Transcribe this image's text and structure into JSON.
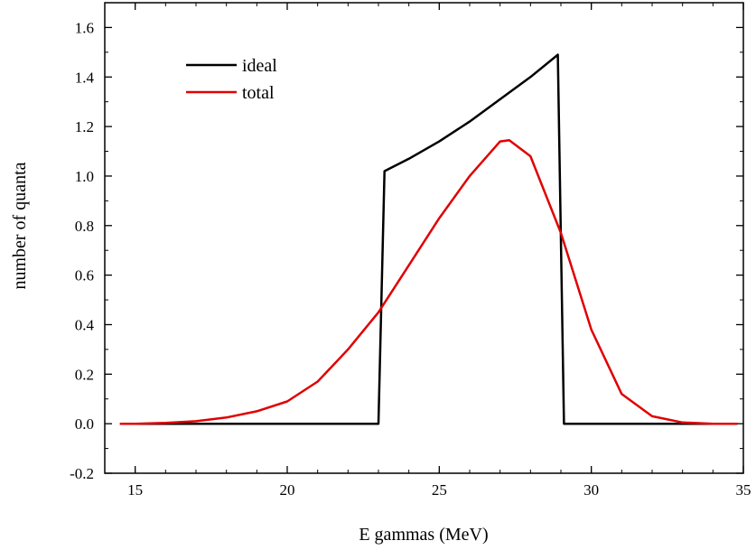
{
  "chart_data": {
    "type": "line",
    "xlabel": "E gammas (MeV)",
    "ylabel": "number of quanta",
    "xlim": [
      14,
      35
    ],
    "ylim": [
      -0.2,
      1.7
    ],
    "x_ticks": [
      15,
      20,
      25,
      30,
      35
    ],
    "y_ticks": [
      -0.2,
      0.0,
      0.2,
      0.4,
      0.6,
      0.8,
      1.0,
      1.2,
      1.4,
      1.6
    ],
    "x_tick_labels": [
      "15",
      "20",
      "25",
      "30",
      "35"
    ],
    "y_tick_labels": [
      "-0.2",
      "0.0",
      "0.2",
      "0.4",
      "0.6",
      "0.8",
      "1.0",
      "1.2",
      "1.4",
      "1.6"
    ],
    "grid": false,
    "legend_position": "top-left",
    "series": [
      {
        "name": "ideal",
        "color": "#000000",
        "points": [
          [
            14.5,
            0
          ],
          [
            23.0,
            0
          ],
          [
            23.2,
            1.02
          ],
          [
            24,
            1.07
          ],
          [
            25,
            1.14
          ],
          [
            26,
            1.22
          ],
          [
            27,
            1.31
          ],
          [
            28,
            1.4
          ],
          [
            28.9,
            1.49
          ],
          [
            29.1,
            0
          ],
          [
            34.8,
            0
          ]
        ]
      },
      {
        "name": "total",
        "color": "#e00000",
        "points": [
          [
            14.5,
            0
          ],
          [
            15,
            0
          ],
          [
            16,
            0.003
          ],
          [
            17,
            0.01
          ],
          [
            18,
            0.025
          ],
          [
            19,
            0.05
          ],
          [
            20,
            0.09
          ],
          [
            21,
            0.17
          ],
          [
            22,
            0.3
          ],
          [
            23,
            0.45
          ],
          [
            24,
            0.64
          ],
          [
            25,
            0.83
          ],
          [
            26,
            1.0
          ],
          [
            27,
            1.14
          ],
          [
            27.3,
            1.145
          ],
          [
            28,
            1.08
          ],
          [
            29,
            0.77
          ],
          [
            30,
            0.38
          ],
          [
            31,
            0.12
          ],
          [
            32,
            0.03
          ],
          [
            33,
            0.005
          ],
          [
            34,
            0
          ],
          [
            34.8,
            0
          ]
        ]
      }
    ]
  }
}
